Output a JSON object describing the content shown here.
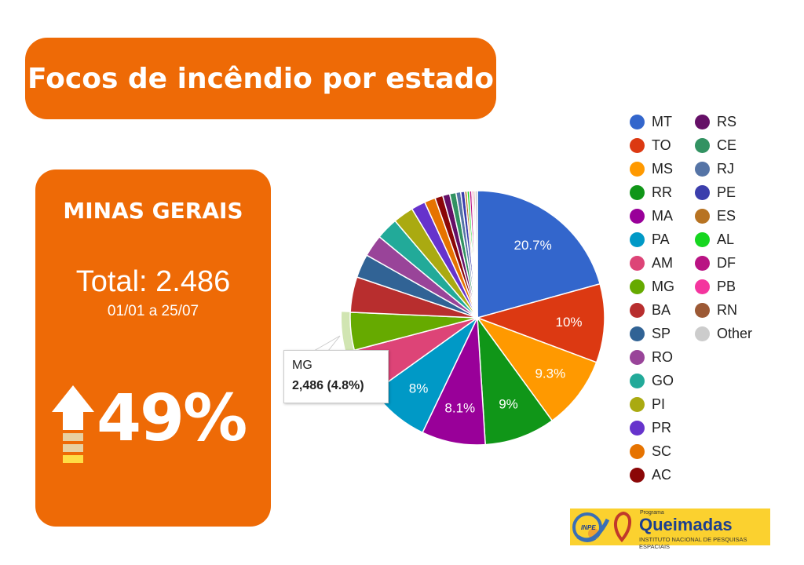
{
  "header": {
    "title": "Focos de incêndio por estado"
  },
  "card": {
    "state": "MINAS GERAIS",
    "total": "Total: 2.486",
    "period": "01/01 a  25/07",
    "change": "49%",
    "change_direction": "up-arrow-icon"
  },
  "tooltip": {
    "label": "MG",
    "value": "2,486 (4.8%)"
  },
  "logo": {
    "program": "Programa",
    "name": "Queimadas",
    "institute": "INSTITUTO NACIONAL DE PESQUISAS ESPACIAIS",
    "inpe": "INPE"
  },
  "chart_data": {
    "type": "pie",
    "highlighted": "MG",
    "legend_position": "right",
    "slices": [
      {
        "label": "MT",
        "value": 20.7,
        "color": "#3366cc",
        "data_label": "20.7%"
      },
      {
        "label": "TO",
        "value": 10,
        "color": "#dc3912",
        "data_label": "10%"
      },
      {
        "label": "MS",
        "value": 9.3,
        "color": "#ff9900",
        "data_label": "9.3%"
      },
      {
        "label": "RR",
        "value": 9,
        "color": "#109618",
        "data_label": "9%"
      },
      {
        "label": "MA",
        "value": 8.1,
        "color": "#990099",
        "data_label": "8.1%"
      },
      {
        "label": "PA",
        "value": 8,
        "color": "#0099c6",
        "data_label": "8%"
      },
      {
        "label": "AM",
        "value": 5.8,
        "color": "#dd4477"
      },
      {
        "label": "MG",
        "value": 4.8,
        "color": "#66aa00"
      },
      {
        "label": "BA",
        "value": 4.5,
        "color": "#b82e2e"
      },
      {
        "label": "SP",
        "value": 3,
        "color": "#316395"
      },
      {
        "label": "RO",
        "value": 2.8,
        "color": "#994499"
      },
      {
        "label": "GO",
        "value": 2.8,
        "color": "#22aa99"
      },
      {
        "label": "PI",
        "value": 2.6,
        "color": "#aaaa11"
      },
      {
        "label": "PR",
        "value": 1.8,
        "color": "#6633cc"
      },
      {
        "label": "SC",
        "value": 1.4,
        "color": "#e67300"
      },
      {
        "label": "AC",
        "value": 1,
        "color": "#8b0707"
      },
      {
        "label": "RS",
        "value": 0.9,
        "color": "#651067"
      },
      {
        "label": "CE",
        "value": 0.8,
        "color": "#329262"
      },
      {
        "label": "RJ",
        "value": 0.6,
        "color": "#5574a6"
      },
      {
        "label": "PE",
        "value": 0.5,
        "color": "#3b3eac"
      },
      {
        "label": "ES",
        "value": 0.3,
        "color": "#b77322"
      },
      {
        "label": "AL",
        "value": 0.3,
        "color": "#16d620"
      },
      {
        "label": "DF",
        "value": 0.3,
        "color": "#b91383"
      },
      {
        "label": "PB",
        "value": 0.2,
        "color": "#f4359e"
      },
      {
        "label": "RN",
        "value": 0.2,
        "color": "#9c5935"
      },
      {
        "label": "Other",
        "value": 0.3,
        "color": "#cccccc"
      }
    ]
  }
}
